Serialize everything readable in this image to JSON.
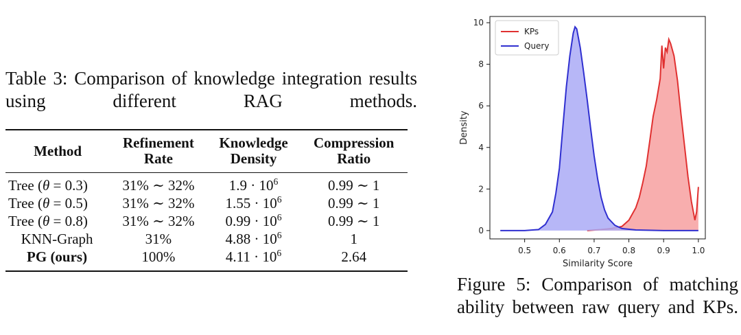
{
  "table_caption": "Table 3: Comparison of knowledge integration results using different RAG methods.",
  "table": {
    "headers": [
      {
        "line1": "Method",
        "line2": ""
      },
      {
        "line1": "Refinement",
        "line2": "Rate"
      },
      {
        "line1": "Knowledge",
        "line2": "Density"
      },
      {
        "line1": "Compression",
        "line2": "Ratio"
      }
    ],
    "rows": [
      {
        "method_prefix": "Tree (",
        "theta": "θ",
        "method_suffix": " = 0.3)",
        "rate": "31% ∼ 32%",
        "density_base": "1.9 · 10",
        "density_exp": "6",
        "ratio": "0.99 ∼ 1"
      },
      {
        "method_prefix": "Tree (",
        "theta": "θ",
        "method_suffix": " = 0.5)",
        "rate": "31% ∼ 32%",
        "density_base": "1.55 · 10",
        "density_exp": "6",
        "ratio": "0.99 ∼ 1"
      },
      {
        "method_prefix": "Tree (",
        "theta": "θ",
        "method_suffix": " = 0.8)",
        "rate": "31% ∼ 32%",
        "density_base": "0.99 · 10",
        "density_exp": "6",
        "ratio": "0.99 ∼ 1"
      },
      {
        "method": "KNN-Graph",
        "rate": "31%",
        "density_base": "4.88 · 10",
        "density_exp": "6",
        "ratio": "1"
      },
      {
        "method": "PG (ours)",
        "rate": "100%",
        "density_base": "4.11 · 10",
        "density_exp": "6",
        "ratio": "2.64"
      }
    ]
  },
  "figure_caption": "Figure 5: Comparison of matching ability between raw query and KPs.",
  "chart_data": {
    "type": "area",
    "xlabel": "Similarity Score",
    "ylabel": "Density",
    "xlim": [
      0.4,
      1.02
    ],
    "ylim": [
      -0.4,
      10.3
    ],
    "xticks": [
      "0.5",
      "0.6",
      "0.7",
      "0.8",
      "0.9",
      "1.0"
    ],
    "yticks": [
      "0",
      "2",
      "4",
      "6",
      "8",
      "10"
    ],
    "legend_position": "top-left",
    "series": [
      {
        "name": "KPs",
        "color": "#e03030",
        "fill": "#f7a0a0",
        "x": [
          0.68,
          0.72,
          0.75,
          0.78,
          0.8,
          0.82,
          0.83,
          0.84,
          0.85,
          0.86,
          0.87,
          0.88,
          0.89,
          0.895,
          0.9,
          0.905,
          0.91,
          0.915,
          0.92,
          0.93,
          0.94,
          0.95,
          0.96,
          0.97,
          0.98,
          0.99,
          0.995,
          1.0
        ],
        "y": [
          0.0,
          0.05,
          0.1,
          0.2,
          0.5,
          1.1,
          1.6,
          2.3,
          3.1,
          4.3,
          5.5,
          6.3,
          7.3,
          8.9,
          7.8,
          8.8,
          8.6,
          9.2,
          9.0,
          8.4,
          7.2,
          5.6,
          4.1,
          2.6,
          1.4,
          0.5,
          0.9,
          2.1
        ]
      },
      {
        "name": "Query",
        "color": "#2f2fd0",
        "fill": "#aaaaf6",
        "x": [
          0.43,
          0.5,
          0.54,
          0.56,
          0.58,
          0.59,
          0.6,
          0.61,
          0.62,
          0.63,
          0.64,
          0.645,
          0.65,
          0.66,
          0.67,
          0.68,
          0.69,
          0.7,
          0.71,
          0.72,
          0.73,
          0.74,
          0.76,
          0.78,
          0.82,
          0.9,
          1.0
        ],
        "y": [
          0.0,
          0.0,
          0.05,
          0.3,
          0.9,
          1.8,
          3.0,
          5.0,
          6.9,
          8.4,
          9.5,
          9.8,
          9.7,
          8.8,
          7.6,
          6.3,
          4.9,
          3.6,
          2.5,
          1.6,
          1.0,
          0.6,
          0.25,
          0.1,
          0.03,
          0.0,
          0.0
        ]
      }
    ]
  }
}
